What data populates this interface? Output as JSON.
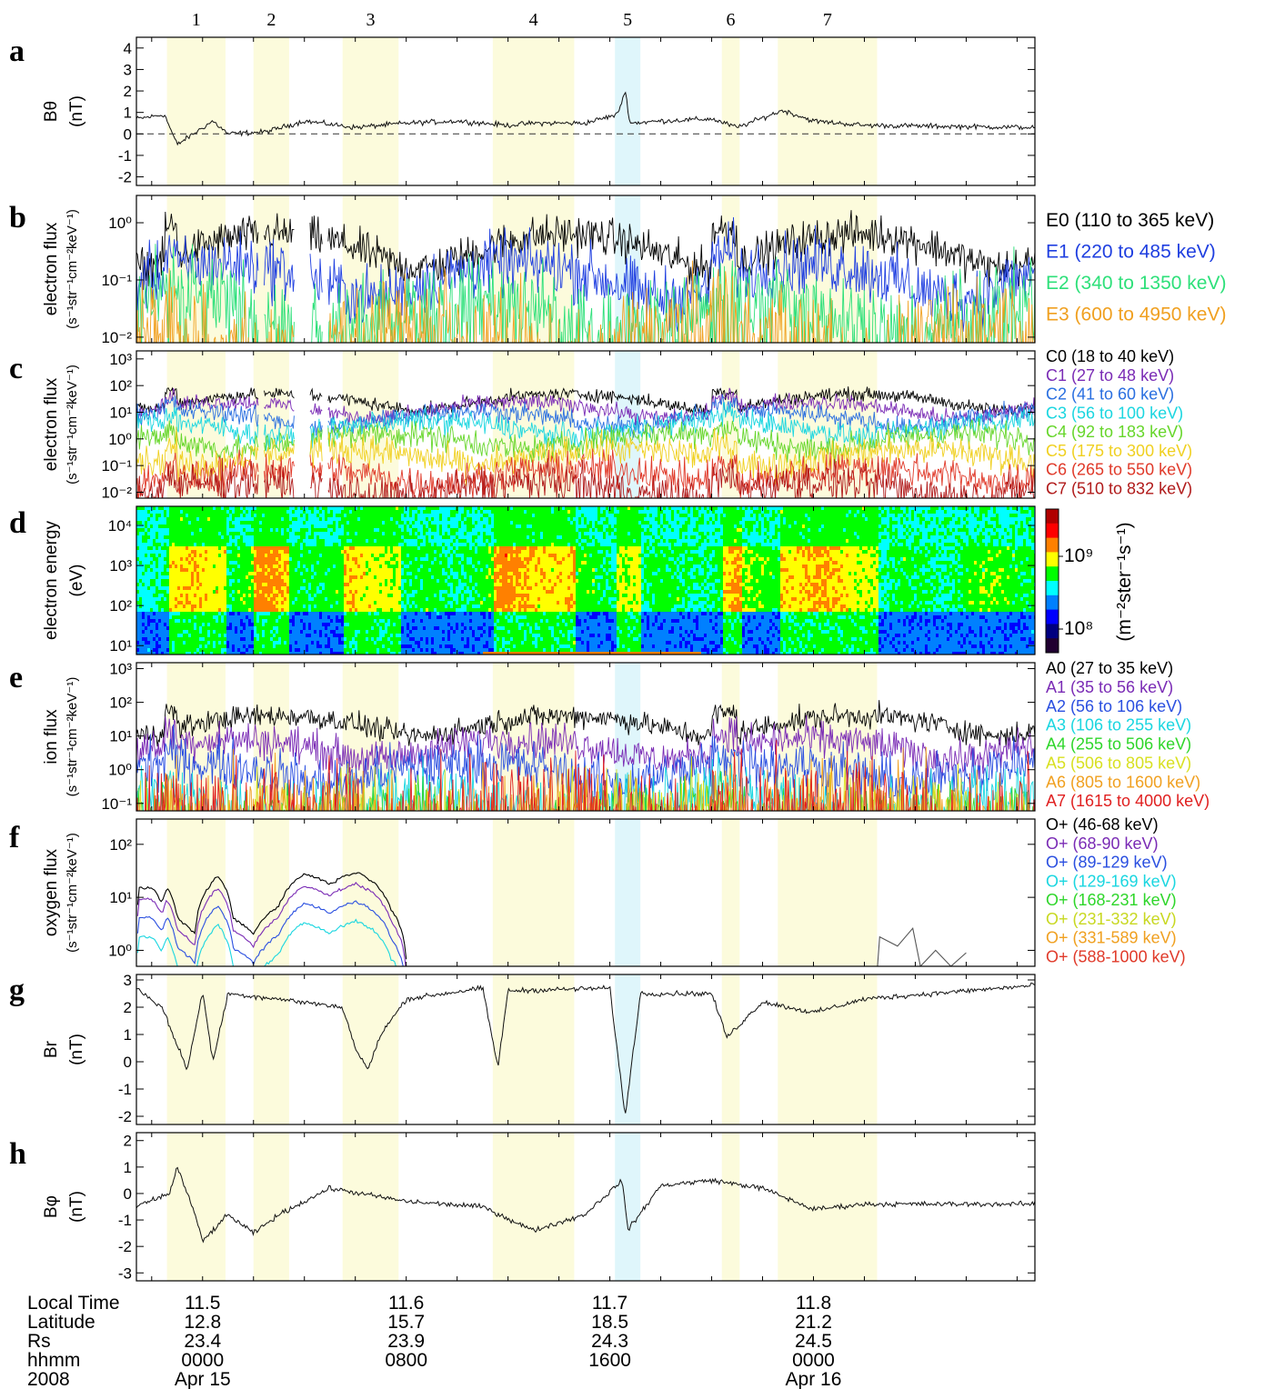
{
  "figure": {
    "interval_numbers": [
      "1",
      "2",
      "3",
      "4",
      "5",
      "6",
      "7"
    ]
  },
  "footer": {
    "row_labels": [
      "Local Time",
      "Latitude",
      "Rs",
      "hhmm",
      "2008"
    ],
    "columns": [
      {
        "values": [
          "11.5",
          "12.8",
          "23.4",
          "0000",
          "Apr 15"
        ]
      },
      {
        "values": [
          "11.6",
          "15.7",
          "23.9",
          "0800",
          ""
        ]
      },
      {
        "values": [
          "11.7",
          "18.5",
          "24.3",
          "1600",
          ""
        ]
      },
      {
        "values": [
          "11.8",
          "21.2",
          "24.5",
          "0000",
          "Apr 16"
        ]
      }
    ]
  },
  "colorbar": {
    "label": "(m⁻²ster⁻¹s⁻¹)",
    "ticks": [
      "10⁹",
      "10⁸"
    ],
    "colors": [
      "#b00000",
      "#ff0000",
      "#ff8000",
      "#ffff00",
      "#00ff00",
      "#00ffff",
      "#0080ff",
      "#0000ff",
      "#000080",
      "#200030"
    ]
  },
  "chart_data": [
    {
      "panel": "a",
      "type": "line",
      "ylabel": "Bθ",
      "ylabel_unit": "(nT)",
      "ylim": [
        -2.4,
        4.5
      ],
      "yticks": [
        "4",
        "3",
        "2",
        "1",
        "0",
        "-1",
        "-2"
      ],
      "ytick_values": [
        4,
        3,
        2,
        1,
        0,
        -1,
        -2
      ],
      "x_hours": [
        -2.6,
        32.7
      ],
      "intervals": [
        {
          "id": "1",
          "start": -1.4,
          "end": 0.9,
          "color": "yellow"
        },
        {
          "id": "2",
          "start": 2.0,
          "end": 3.4,
          "color": "yellow"
        },
        {
          "id": "3",
          "start": 5.5,
          "end": 7.7,
          "color": "yellow"
        },
        {
          "id": "4",
          "start": 11.4,
          "end": 14.6,
          "color": "yellow"
        },
        {
          "id": "5",
          "start": 16.2,
          "end": 17.2,
          "color": "cyan"
        },
        {
          "id": "6",
          "start": 20.4,
          "end": 21.1,
          "color": "yellow"
        },
        {
          "id": "7",
          "start": 22.6,
          "end": 26.5,
          "color": "yellow"
        }
      ],
      "series": [
        {
          "values_at_hours": [
            [
              -2.6,
              0.7
            ],
            [
              -1.5,
              0.9
            ],
            [
              -1.0,
              -0.5
            ],
            [
              0.4,
              0.6
            ],
            [
              1.0,
              0.0
            ],
            [
              2.5,
              0.1
            ],
            [
              4,
              0.6
            ],
            [
              6,
              0.3
            ],
            [
              8,
              0.5
            ],
            [
              10,
              0.6
            ],
            [
              12,
              0.4
            ],
            [
              13,
              0.5
            ],
            [
              15,
              0.5
            ],
            [
              16.3,
              0.9
            ],
            [
              16.6,
              2.0
            ],
            [
              16.8,
              0.5
            ],
            [
              18,
              0.6
            ],
            [
              20,
              0.7
            ],
            [
              21,
              0.3
            ],
            [
              22.8,
              1.1
            ],
            [
              24,
              0.6
            ],
            [
              26,
              0.4
            ],
            [
              32.7,
              0.3
            ]
          ]
        }
      ],
      "reference_line": 0
    },
    {
      "panel": "b",
      "type": "line",
      "yscale": "log",
      "ylabel": "electron flux",
      "ylabel_unit": "(s⁻¹str⁻¹cm⁻²keV⁻¹)",
      "ylim": [
        0.008,
        3
      ],
      "yticks": [
        "10⁰",
        "10⁻¹",
        "10⁻²"
      ],
      "ytick_values": [
        1,
        0.1,
        0.01
      ],
      "series": [
        {
          "name": "E0 (110 to 365 keV)",
          "color": "#000000",
          "base": 0.4
        },
        {
          "name": "E1 (220 to 485 keV)",
          "color": "#1f3fe0",
          "base": 0.12
        },
        {
          "name": "E2 (340 to 1350 keV)",
          "color": "#2ee07a",
          "base": 0.03
        },
        {
          "name": "E3 (600 to 4950 keV)",
          "color": "#f0a020",
          "base": 0.01
        }
      ]
    },
    {
      "panel": "c",
      "type": "line",
      "yscale": "log",
      "ylabel": "electron flux",
      "ylabel_unit": "(s⁻¹str⁻¹cm⁻²keV⁻¹)",
      "ylim": [
        0.006,
        2000
      ],
      "yticks": [
        "10³",
        "10²",
        "10¹",
        "10⁰",
        "10⁻¹",
        "10⁻²"
      ],
      "ytick_values": [
        1000,
        100,
        10,
        1,
        0.1,
        0.01
      ],
      "series": [
        {
          "name": "C0 (18 to 40 keV)",
          "color": "#000000",
          "base": 30
        },
        {
          "name": "C1 (27 to 48 keV)",
          "color": "#7a2bb5",
          "base": 15
        },
        {
          "name": "C2 (41 to 60 keV)",
          "color": "#2a6fe0",
          "base": 7
        },
        {
          "name": "C3 (56 to 100 keV)",
          "color": "#1ad6e0",
          "base": 3
        },
        {
          "name": "C4 (92 to 183 keV)",
          "color": "#66d62a",
          "base": 1
        },
        {
          "name": "C5 (175 to 300 keV)",
          "color": "#f0d020",
          "base": 0.25
        },
        {
          "name": "C6 (265 to 550 keV)",
          "color": "#e03a2a",
          "base": 0.05
        },
        {
          "name": "C7 (510 to 832 keV)",
          "color": "#b01a1a",
          "base": 0.015
        }
      ]
    },
    {
      "panel": "d",
      "type": "heatmap",
      "ylabel": "electron energy",
      "ylabel_unit": "(eV)",
      "ylim": [
        6,
        30000
      ],
      "yticks": [
        "10⁴",
        "10³",
        "10²",
        "10¹"
      ],
      "ytick_values": [
        10000,
        1000,
        100,
        10
      ]
    },
    {
      "panel": "e",
      "type": "line",
      "yscale": "log",
      "ylabel": "ion flux",
      "ylabel_unit": "(s⁻¹str⁻¹cm⁻²keV⁻¹)",
      "ylim": [
        0.06,
        1500
      ],
      "yticks": [
        "10³",
        "10²",
        "10¹",
        "10⁰",
        "10⁻¹"
      ],
      "ytick_values": [
        1000,
        100,
        10,
        1,
        0.1
      ],
      "series": [
        {
          "name": "A0 (27 to 35 keV)",
          "color": "#000000",
          "base": 25
        },
        {
          "name": "A1 (35 to 56 keV)",
          "color": "#7a2bb5",
          "base": 5
        },
        {
          "name": "A2 (56 to 106 keV)",
          "color": "#2a4fe0",
          "base": 1
        },
        {
          "name": "A3 (106 to 255 keV)",
          "color": "#1ad6e0",
          "base": 0.1
        },
        {
          "name": "A4 (255 to 506 keV)",
          "color": "#2ed62a",
          "base": 0.03
        },
        {
          "name": "A5 (506 to 805 keV)",
          "color": "#d8e020",
          "base": 0.03
        },
        {
          "name": "A6 (805 to 1600 keV)",
          "color": "#f0a020",
          "base": 0.03
        },
        {
          "name": "A7 (1615 to 4000 keV)",
          "color": "#e02020",
          "base": 0.03
        }
      ]
    },
    {
      "panel": "f",
      "type": "line",
      "yscale": "log",
      "ylabel": "oxygen flux",
      "ylabel_unit": "(s⁻¹str⁻¹cm⁻²keV⁻¹)",
      "ylim": [
        0.5,
        300
      ],
      "yticks": [
        "10²",
        "10¹",
        "10⁰"
      ],
      "ytick_values": [
        100,
        10,
        1
      ],
      "series": [
        {
          "name": "O+ (46-68 keV)",
          "color": "#000000"
        },
        {
          "name": "O+ (68-90 keV)",
          "color": "#7a2bb5"
        },
        {
          "name": "O+ (89-129 keV)",
          "color": "#2a4fe0"
        },
        {
          "name": "O+ (129-169 keV)",
          "color": "#1ad6e0"
        },
        {
          "name": "O+ (168-231 keV)",
          "color": "#2ed62a"
        },
        {
          "name": "O+ (231-332 keV)",
          "color": "#c8d820"
        },
        {
          "name": "O+ (331-589 keV)",
          "color": "#f0a020"
        },
        {
          "name": "O+ (588-1000 keV)",
          "color": "#e03a2a"
        }
      ]
    },
    {
      "panel": "g",
      "type": "line",
      "ylabel": "Br",
      "ylabel_unit": "(nT)",
      "ylim": [
        -2.3,
        3.2
      ],
      "yticks": [
        "3",
        "2",
        "1",
        "0",
        "-1",
        "-2"
      ],
      "ytick_values": [
        3,
        2,
        1,
        0,
        -1,
        -2
      ],
      "series": [
        {
          "values_at_hours": [
            [
              -2.6,
              2.7
            ],
            [
              -1.6,
              2.0
            ],
            [
              -0.6,
              -0.3
            ],
            [
              0.0,
              2.6
            ],
            [
              0.4,
              0.0
            ],
            [
              1.0,
              2.5
            ],
            [
              3,
              2.3
            ],
            [
              5.5,
              2.0
            ],
            [
              6.0,
              0.5
            ],
            [
              6.5,
              -0.3
            ],
            [
              7.0,
              1.0
            ],
            [
              8,
              2.3
            ],
            [
              11,
              2.7
            ],
            [
              11.6,
              -0.2
            ],
            [
              12.0,
              2.6
            ],
            [
              16,
              2.7
            ],
            [
              16.6,
              -2.0
            ],
            [
              17.2,
              2.5
            ],
            [
              20,
              2.5
            ],
            [
              20.6,
              0.9
            ],
            [
              22,
              2.2
            ],
            [
              24,
              1.8
            ],
            [
              26,
              2.3
            ],
            [
              32.7,
              2.8
            ]
          ]
        }
      ]
    },
    {
      "panel": "h",
      "type": "line",
      "ylabel": "Bφ",
      "ylabel_unit": "(nT)",
      "ylim": [
        -3.3,
        2.3
      ],
      "yticks": [
        "2",
        "1",
        "0",
        "-1",
        "-2",
        "-3"
      ],
      "ytick_values": [
        2,
        1,
        0,
        -1,
        -2,
        -3
      ],
      "series": [
        {
          "values_at_hours": [
            [
              -2.6,
              -0.5
            ],
            [
              -1.3,
              0.0
            ],
            [
              -1.0,
              1.0
            ],
            [
              -0.4,
              -0.5
            ],
            [
              0.0,
              -1.8
            ],
            [
              1.0,
              -0.8
            ],
            [
              2,
              -1.5
            ],
            [
              3,
              -0.8
            ],
            [
              5,
              0.2
            ],
            [
              8,
              -0.3
            ],
            [
              11,
              -0.5
            ],
            [
              13,
              -1.4
            ],
            [
              15,
              -0.8
            ],
            [
              16.5,
              0.5
            ],
            [
              16.7,
              -1.4
            ],
            [
              18,
              0.3
            ],
            [
              20,
              0.5
            ],
            [
              22,
              0.2
            ],
            [
              24,
              -0.6
            ],
            [
              26,
              -0.4
            ],
            [
              32.7,
              -0.4
            ]
          ]
        }
      ]
    }
  ]
}
